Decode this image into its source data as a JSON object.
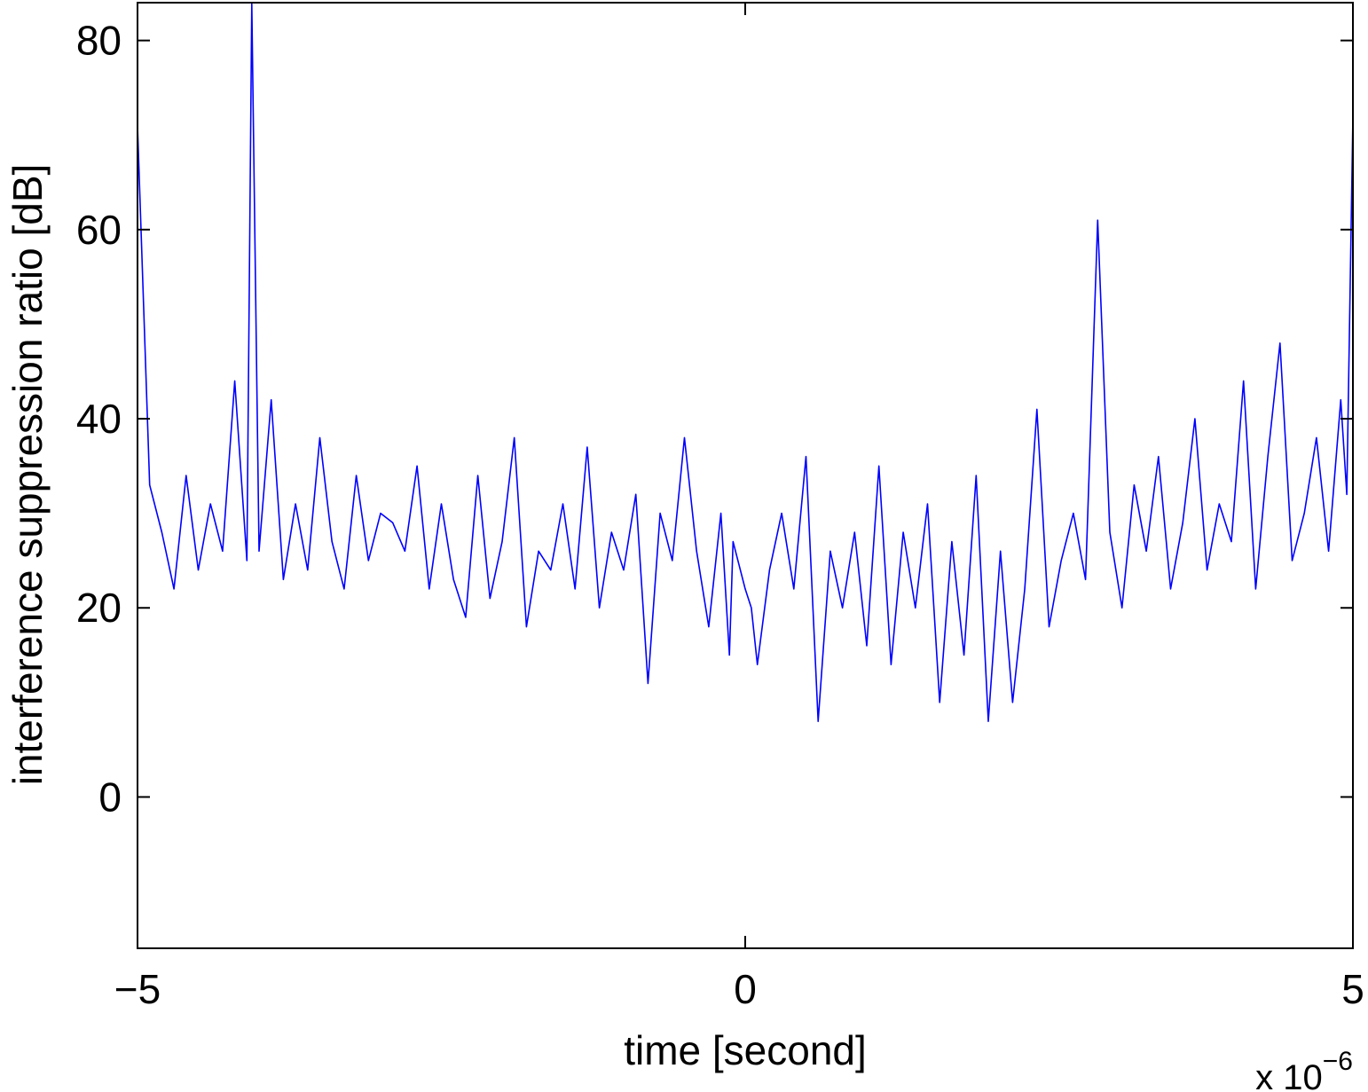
{
  "chart_data": {
    "type": "line",
    "title": "",
    "xlabel": "time [second]",
    "ylabel": "interference suppression ratio [dB]",
    "x_multiplier_label": "x 10",
    "x_multiplier_exponent": "−6",
    "xlim": [
      -5,
      5
    ],
    "ylim": [
      -16,
      84
    ],
    "x_ticks": [
      -5,
      0,
      5
    ],
    "x_tick_labels": [
      "−5",
      "0",
      "5"
    ],
    "y_ticks": [
      0,
      20,
      40,
      60,
      80
    ],
    "y_tick_labels": [
      "0",
      "20",
      "40",
      "60",
      "80"
    ],
    "grid": false,
    "legend": "none",
    "series": [
      {
        "color": "#0000ff",
        "x": [
          -5.0,
          -4.9,
          -4.8,
          -4.7,
          -4.6,
          -4.5,
          -4.4,
          -4.3,
          -4.2,
          -4.1,
          -4.06,
          -4.0,
          -3.9,
          -3.8,
          -3.7,
          -3.6,
          -3.5,
          -3.4,
          -3.3,
          -3.2,
          -3.1,
          -3.0,
          -2.9,
          -2.8,
          -2.7,
          -2.6,
          -2.5,
          -2.4,
          -2.3,
          -2.2,
          -2.1,
          -2.0,
          -1.9,
          -1.8,
          -1.7,
          -1.6,
          -1.5,
          -1.4,
          -1.3,
          -1.2,
          -1.1,
          -1.0,
          -0.9,
          -0.8,
          -0.7,
          -0.6,
          -0.5,
          -0.4,
          -0.3,
          -0.2,
          -0.13,
          -0.1,
          0.0,
          0.05,
          0.1,
          0.2,
          0.3,
          0.4,
          0.5,
          0.6,
          0.7,
          0.8,
          0.9,
          1.0,
          1.1,
          1.2,
          1.3,
          1.4,
          1.5,
          1.6,
          1.7,
          1.8,
          1.9,
          2.0,
          2.1,
          2.2,
          2.3,
          2.4,
          2.5,
          2.6,
          2.7,
          2.8,
          2.9,
          3.0,
          3.1,
          3.2,
          3.3,
          3.4,
          3.5,
          3.6,
          3.7,
          3.8,
          3.9,
          4.0,
          4.1,
          4.2,
          4.3,
          4.4,
          4.5,
          4.6,
          4.7,
          4.8,
          4.9,
          4.95,
          5.0
        ],
        "y": [
          71,
          33,
          28,
          22,
          34,
          24,
          31,
          26,
          44,
          25,
          84,
          26,
          42,
          23,
          31,
          24,
          38,
          27,
          22,
          34,
          25,
          30,
          29,
          26,
          35,
          22,
          31,
          23,
          19,
          34,
          21,
          27,
          38,
          18,
          26,
          24,
          31,
          22,
          37,
          20,
          28,
          24,
          32,
          12,
          30,
          25,
          38,
          26,
          18,
          30,
          15,
          27,
          22,
          20,
          14,
          24,
          30,
          22,
          36,
          8,
          26,
          20,
          28,
          16,
          35,
          14,
          28,
          20,
          31,
          10,
          27,
          15,
          34,
          8,
          26,
          10,
          22,
          41,
          18,
          25,
          30,
          23,
          61,
          28,
          20,
          33,
          26,
          36,
          22,
          29,
          40,
          24,
          31,
          27,
          44,
          22,
          36,
          48,
          25,
          30,
          38,
          26,
          42,
          32,
          72
        ]
      }
    ]
  }
}
